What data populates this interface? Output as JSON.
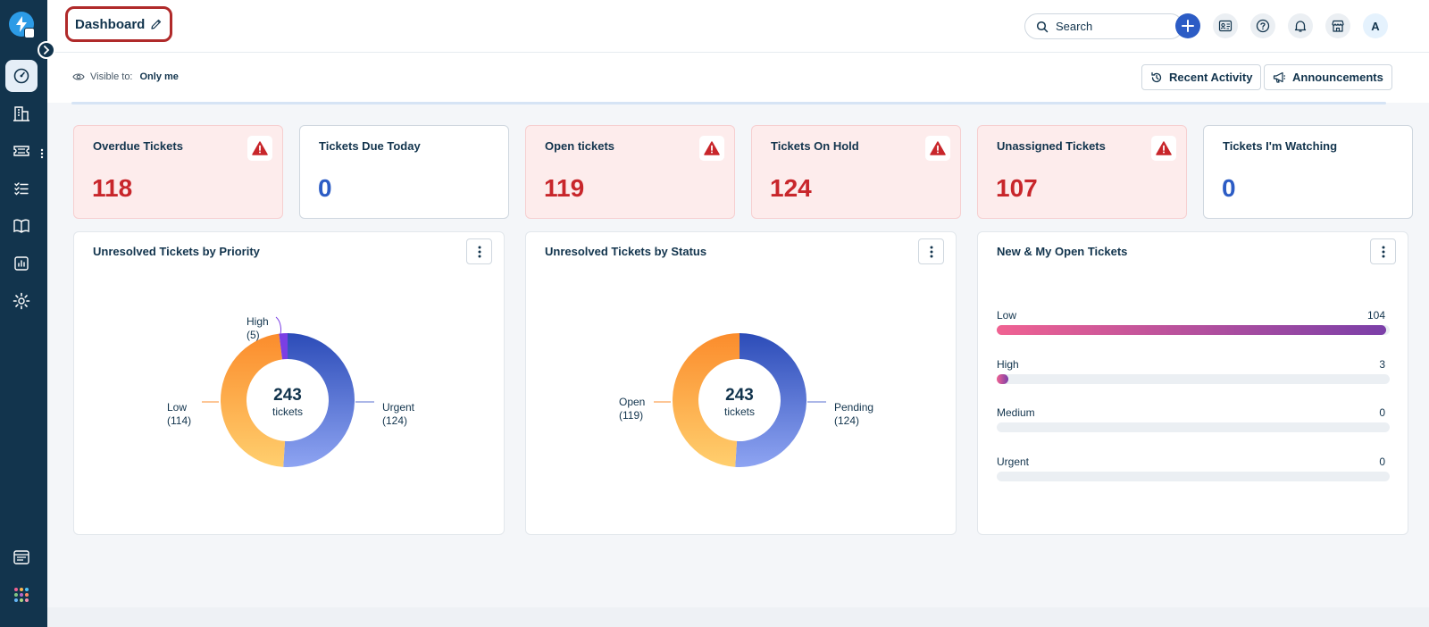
{
  "header": {
    "title": "Dashboard",
    "search_placeholder": "Search",
    "avatar_initial": "A"
  },
  "subheader": {
    "visible_label": "Visible to:",
    "visible_value": "Only me",
    "recent_activity": "Recent Activity",
    "announcements": "Announcements"
  },
  "cards": [
    {
      "label": "Overdue Tickets",
      "value": "118",
      "alert": true
    },
    {
      "label": "Tickets Due Today",
      "value": "0",
      "alert": false
    },
    {
      "label": "Open tickets",
      "value": "119",
      "alert": true
    },
    {
      "label": "Tickets On Hold",
      "value": "124",
      "alert": true
    },
    {
      "label": "Unassigned Tickets",
      "value": "107",
      "alert": true
    },
    {
      "label": "Tickets I'm Watching",
      "value": "0",
      "alert": false
    }
  ],
  "widgets": {
    "priority": {
      "title": "Unresolved Tickets by Priority",
      "total": "243",
      "total_label": "tickets",
      "segments": [
        {
          "name": "Urgent",
          "value": 124,
          "display": "(124)"
        },
        {
          "name": "Low",
          "value": 114,
          "display": "(114)"
        },
        {
          "name": "High",
          "value": 5,
          "display": "(5)"
        }
      ]
    },
    "status": {
      "title": "Unresolved Tickets by Status",
      "total": "243",
      "total_label": "tickets",
      "segments": [
        {
          "name": "Pending",
          "value": 124,
          "display": "(124)"
        },
        {
          "name": "Open",
          "value": 119,
          "display": "(119)"
        }
      ]
    },
    "new_open": {
      "title": "New & My Open Tickets",
      "rows": [
        {
          "label": "Low",
          "count": "104",
          "fraction": 0.99
        },
        {
          "label": "High",
          "count": "3",
          "fraction": 0.029
        },
        {
          "label": "Medium",
          "count": "0",
          "fraction": 0
        },
        {
          "label": "Urgent",
          "count": "0",
          "fraction": 0
        }
      ]
    }
  },
  "chart_data": [
    {
      "type": "pie",
      "title": "Unresolved Tickets by Priority",
      "categories": [
        "Urgent",
        "Low",
        "High"
      ],
      "values": [
        124,
        114,
        5
      ],
      "center_text": "243 tickets"
    },
    {
      "type": "pie",
      "title": "Unresolved Tickets by Status",
      "categories": [
        "Pending",
        "Open"
      ],
      "values": [
        124,
        119
      ],
      "center_text": "243 tickets"
    },
    {
      "type": "bar",
      "title": "New & My Open Tickets",
      "categories": [
        "Low",
        "High",
        "Medium",
        "Urgent"
      ],
      "values": [
        104,
        3,
        0,
        0
      ]
    }
  ],
  "colors": {
    "sidebar": "#12344d",
    "alert_bg": "#fdecec",
    "alert_value": "#c8262b",
    "blue_value": "#2c5cc5",
    "donut_blue": "#2c4cb8",
    "donut_orange": "#fb8c2c",
    "donut_purple": "#7b3fe4"
  }
}
